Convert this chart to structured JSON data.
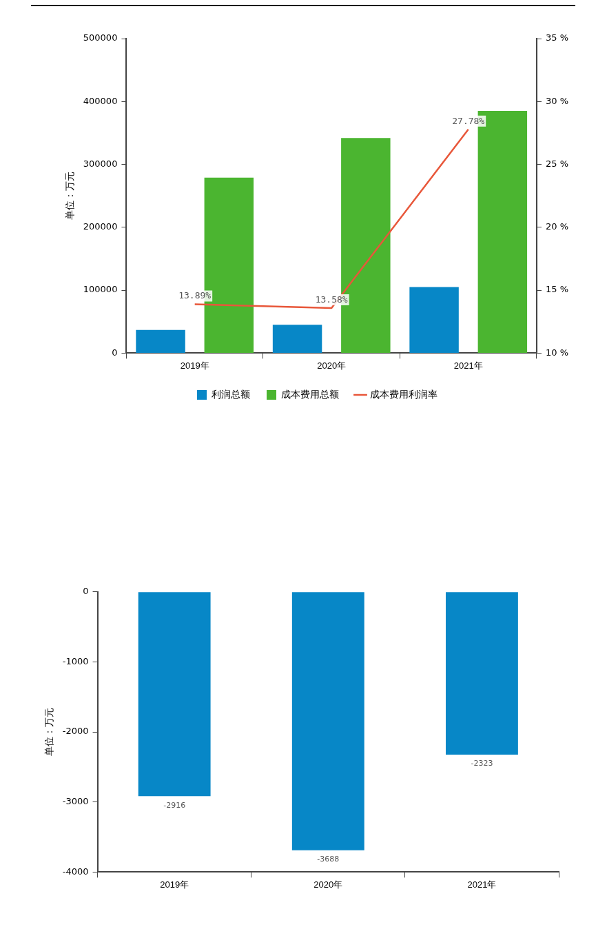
{
  "chart_data": [
    {
      "type": "bar",
      "ylabel": "单位：万元",
      "categories": [
        "2019年",
        "2020年",
        "2021年"
      ],
      "series": [
        {
          "name": "利润总额",
          "color": "#0787c7",
          "values": [
            37000,
            45000,
            105000
          ]
        },
        {
          "name": "成本费用总额",
          "color": "#4bb530",
          "values": [
            279000,
            342000,
            385000
          ]
        },
        {
          "name": "成本费用利润率",
          "type": "line",
          "axis": "y2",
          "color": "#e8573a",
          "values": [
            13.89,
            13.58,
            27.78
          ],
          "value_labels": [
            "13.89%",
            "13.58%",
            "27.78%"
          ]
        }
      ],
      "ylim": [
        0,
        500000
      ],
      "yticks": [
        0,
        100000,
        200000,
        300000,
        400000,
        500000
      ],
      "y2lim": [
        10,
        35
      ],
      "y2ticks": [
        {
          "value": 10,
          "label": "10 %"
        },
        {
          "value": 15,
          "label": "15 %"
        },
        {
          "value": 20,
          "label": "20 %"
        },
        {
          "value": 25,
          "label": "25 %"
        },
        {
          "value": 30,
          "label": "30 %"
        },
        {
          "value": 35,
          "label": "35 %"
        }
      ],
      "grid": false,
      "legend": "bottom",
      "marker": "none"
    },
    {
      "type": "bar",
      "ylabel": "单位：万元",
      "categories": [
        "2019年",
        "2020年",
        "2021年"
      ],
      "values": [
        -2916,
        -3688,
        -2323
      ],
      "color": "#0787c7",
      "ylim": [
        -4000,
        0
      ],
      "yticks": [
        -4000,
        -3000,
        -2000,
        -1000,
        0
      ],
      "grid": false,
      "legend": false,
      "data_labels": true
    }
  ]
}
